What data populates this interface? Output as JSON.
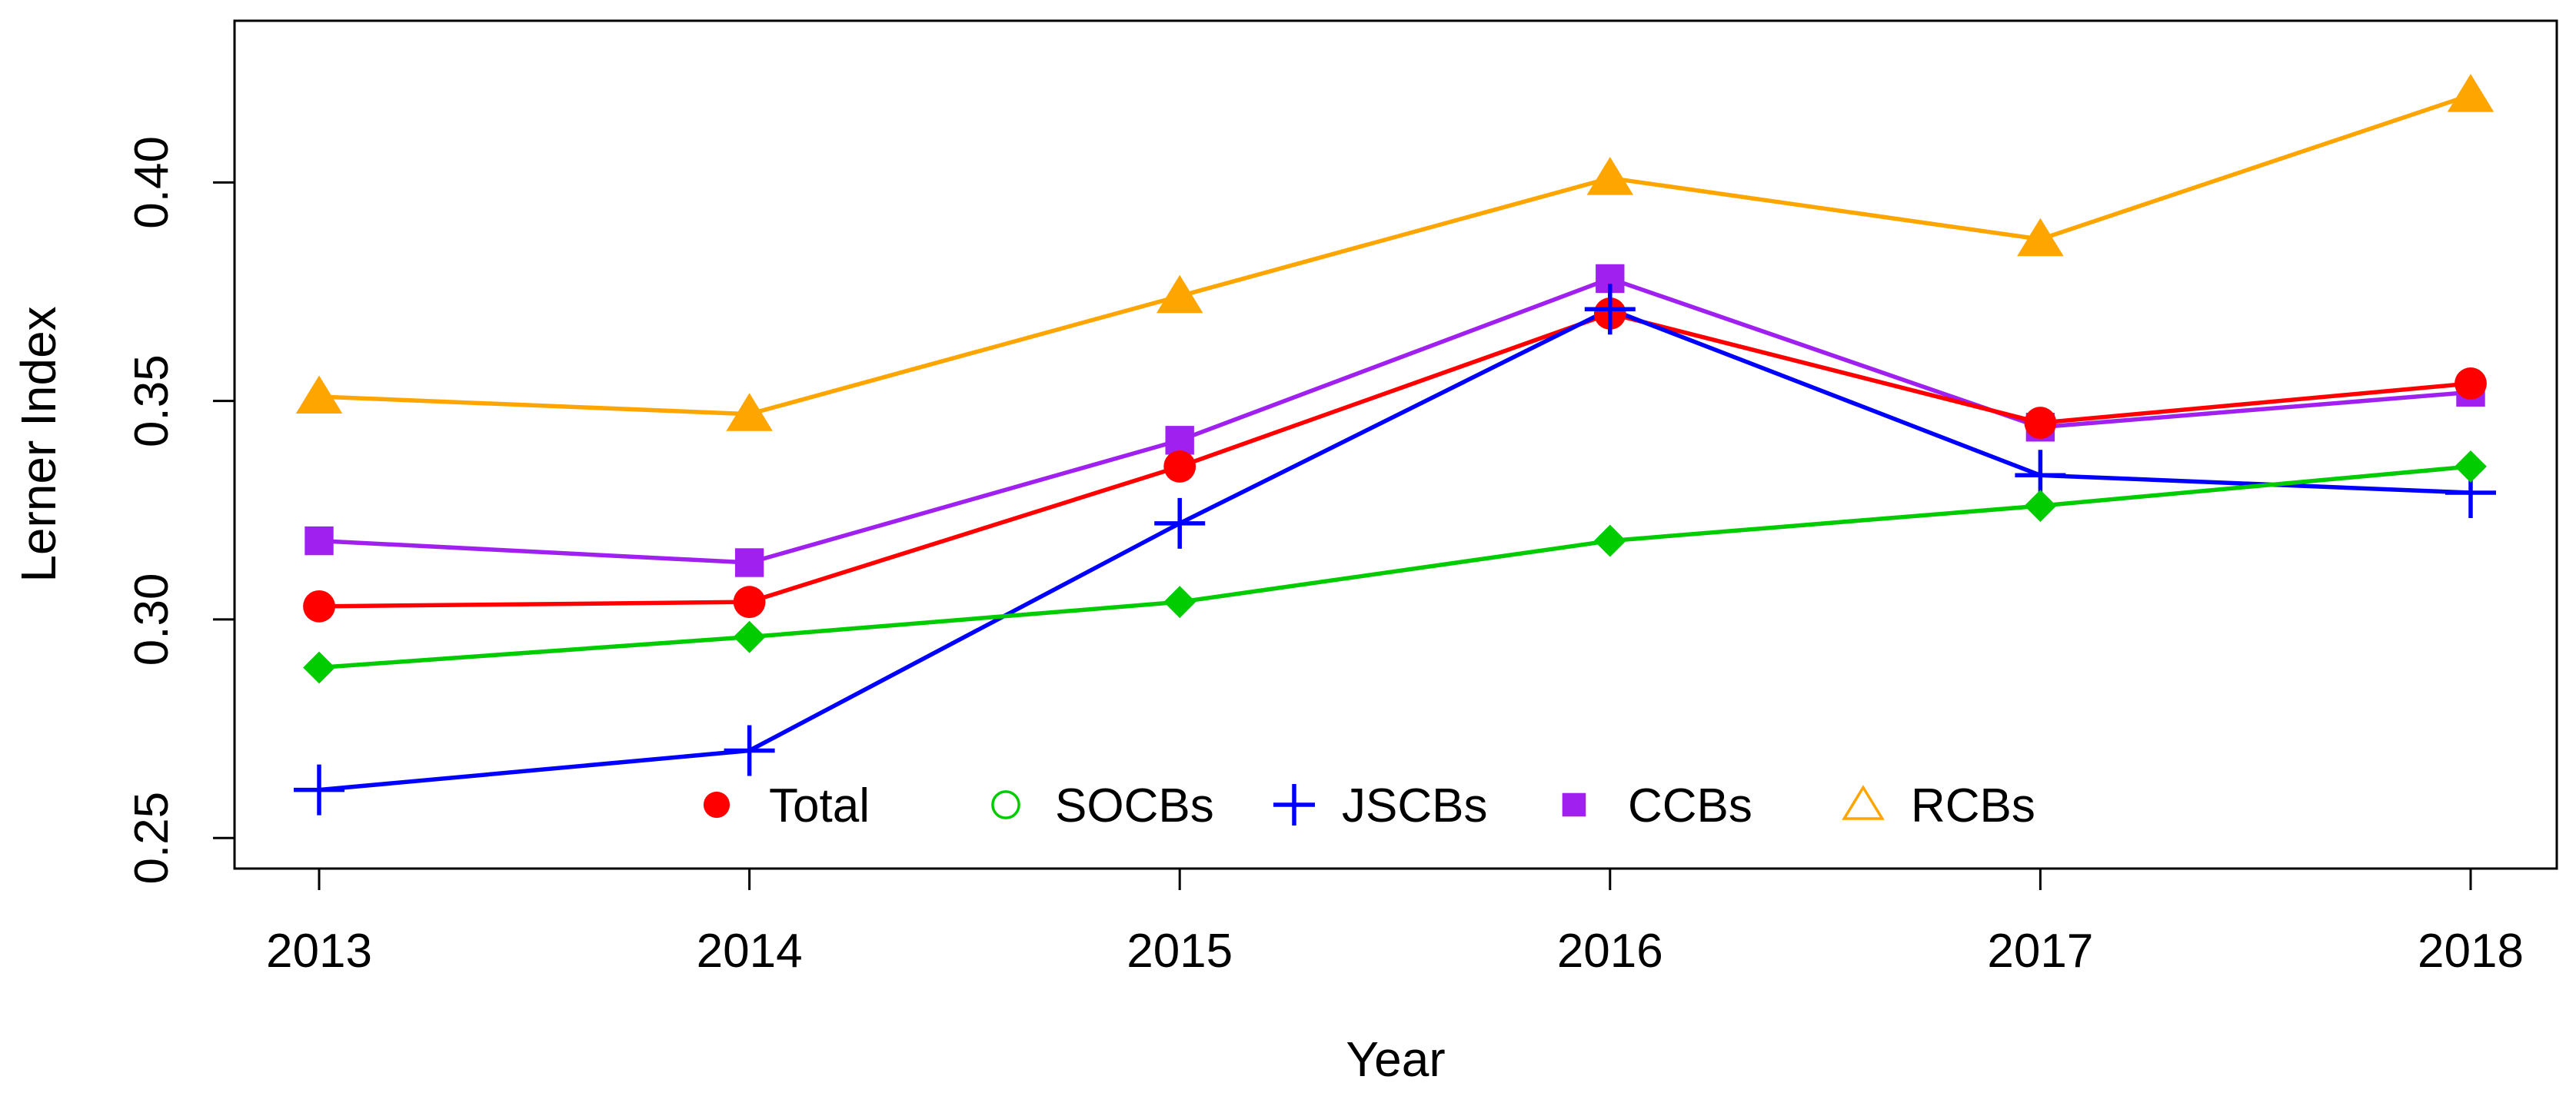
{
  "chart_data": {
    "type": "line",
    "xlabel": "Year",
    "ylabel": "Lerner Index",
    "categories": [
      "2013",
      "2014",
      "2015",
      "2016",
      "2017",
      "2018"
    ],
    "ylim": [
      0.243,
      0.437
    ],
    "yticks": [
      0.25,
      0.3,
      0.35,
      0.4
    ],
    "ytick_labels": [
      "0.25",
      "0.30",
      "0.35",
      "0.40"
    ],
    "grid": false,
    "legend": {
      "placement": "bottom-center",
      "entries": [
        {
          "label": "Total",
          "color": "#ff0000",
          "marker": "filled-circle"
        },
        {
          "label": "SOCBs",
          "color": "#00cc00",
          "marker": "open-circle"
        },
        {
          "label": "JSCBs",
          "color": "#0000ff",
          "marker": "plus"
        },
        {
          "label": "CCBs",
          "color": "#a020f0",
          "marker": "filled-square"
        },
        {
          "label": "RCBs",
          "color": "#ffa500",
          "marker": "open-triangle"
        }
      ]
    },
    "series": [
      {
        "name": "RCBs",
        "color": "#ffa500",
        "marker": "filled-triangle",
        "values": [
          0.351,
          0.347,
          0.374,
          0.401,
          0.387,
          0.42
        ]
      },
      {
        "name": "CCBs",
        "color": "#a020f0",
        "marker": "filled-square",
        "values": [
          0.318,
          0.313,
          0.341,
          0.378,
          0.344,
          0.352
        ]
      },
      {
        "name": "Total",
        "color": "#ff0000",
        "marker": "filled-circle",
        "values": [
          0.303,
          0.304,
          0.335,
          0.37,
          0.345,
          0.354
        ]
      },
      {
        "name": "JSCBs",
        "color": "#0000ff",
        "marker": "plus",
        "values": [
          0.261,
          0.27,
          0.322,
          0.371,
          0.333,
          0.329
        ]
      },
      {
        "name": "SOCBs",
        "color": "#00cc00",
        "marker": "filled-diamond",
        "values": [
          0.289,
          0.296,
          0.304,
          0.318,
          0.326,
          0.335
        ]
      }
    ]
  }
}
